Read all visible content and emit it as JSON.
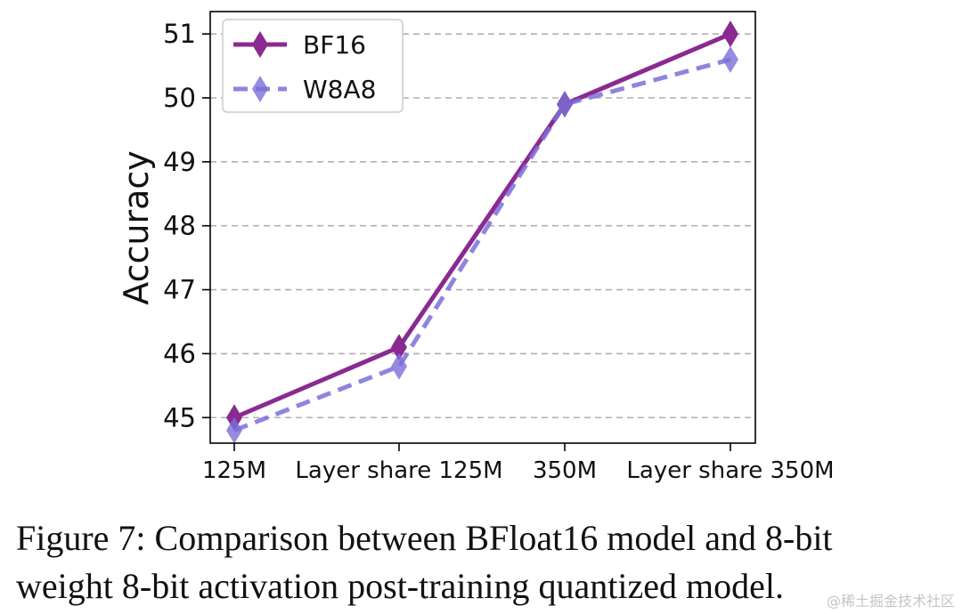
{
  "chart_data": {
    "type": "line",
    "categories": [
      "125M",
      "Layer share 125M",
      "350M",
      "Layer share 350M"
    ],
    "series": [
      {
        "name": "BF16",
        "values": [
          45.0,
          46.1,
          49.9,
          51.0
        ],
        "color": "#8a2a91",
        "style": "solid",
        "marker": "thin_diamond"
      },
      {
        "name": "W8A8",
        "values": [
          44.8,
          45.8,
          49.9,
          50.6
        ],
        "color": "#7b6fd9",
        "style": "dashed",
        "marker": "thin_diamond"
      }
    ],
    "ylabel": "Accuracy",
    "xlabel": "",
    "ylim": [
      44.6,
      51.35
    ],
    "yticks": [
      45,
      46,
      47,
      48,
      49,
      50,
      51
    ],
    "grid": "horizontal-dashed",
    "legend_position": "top-left"
  },
  "caption": {
    "line1": "Figure 7: Comparison between BFloat16 model and 8-bit",
    "line2": "weight 8-bit activation post-training quantized model."
  },
  "watermark": "@稀土掘金技术社区"
}
